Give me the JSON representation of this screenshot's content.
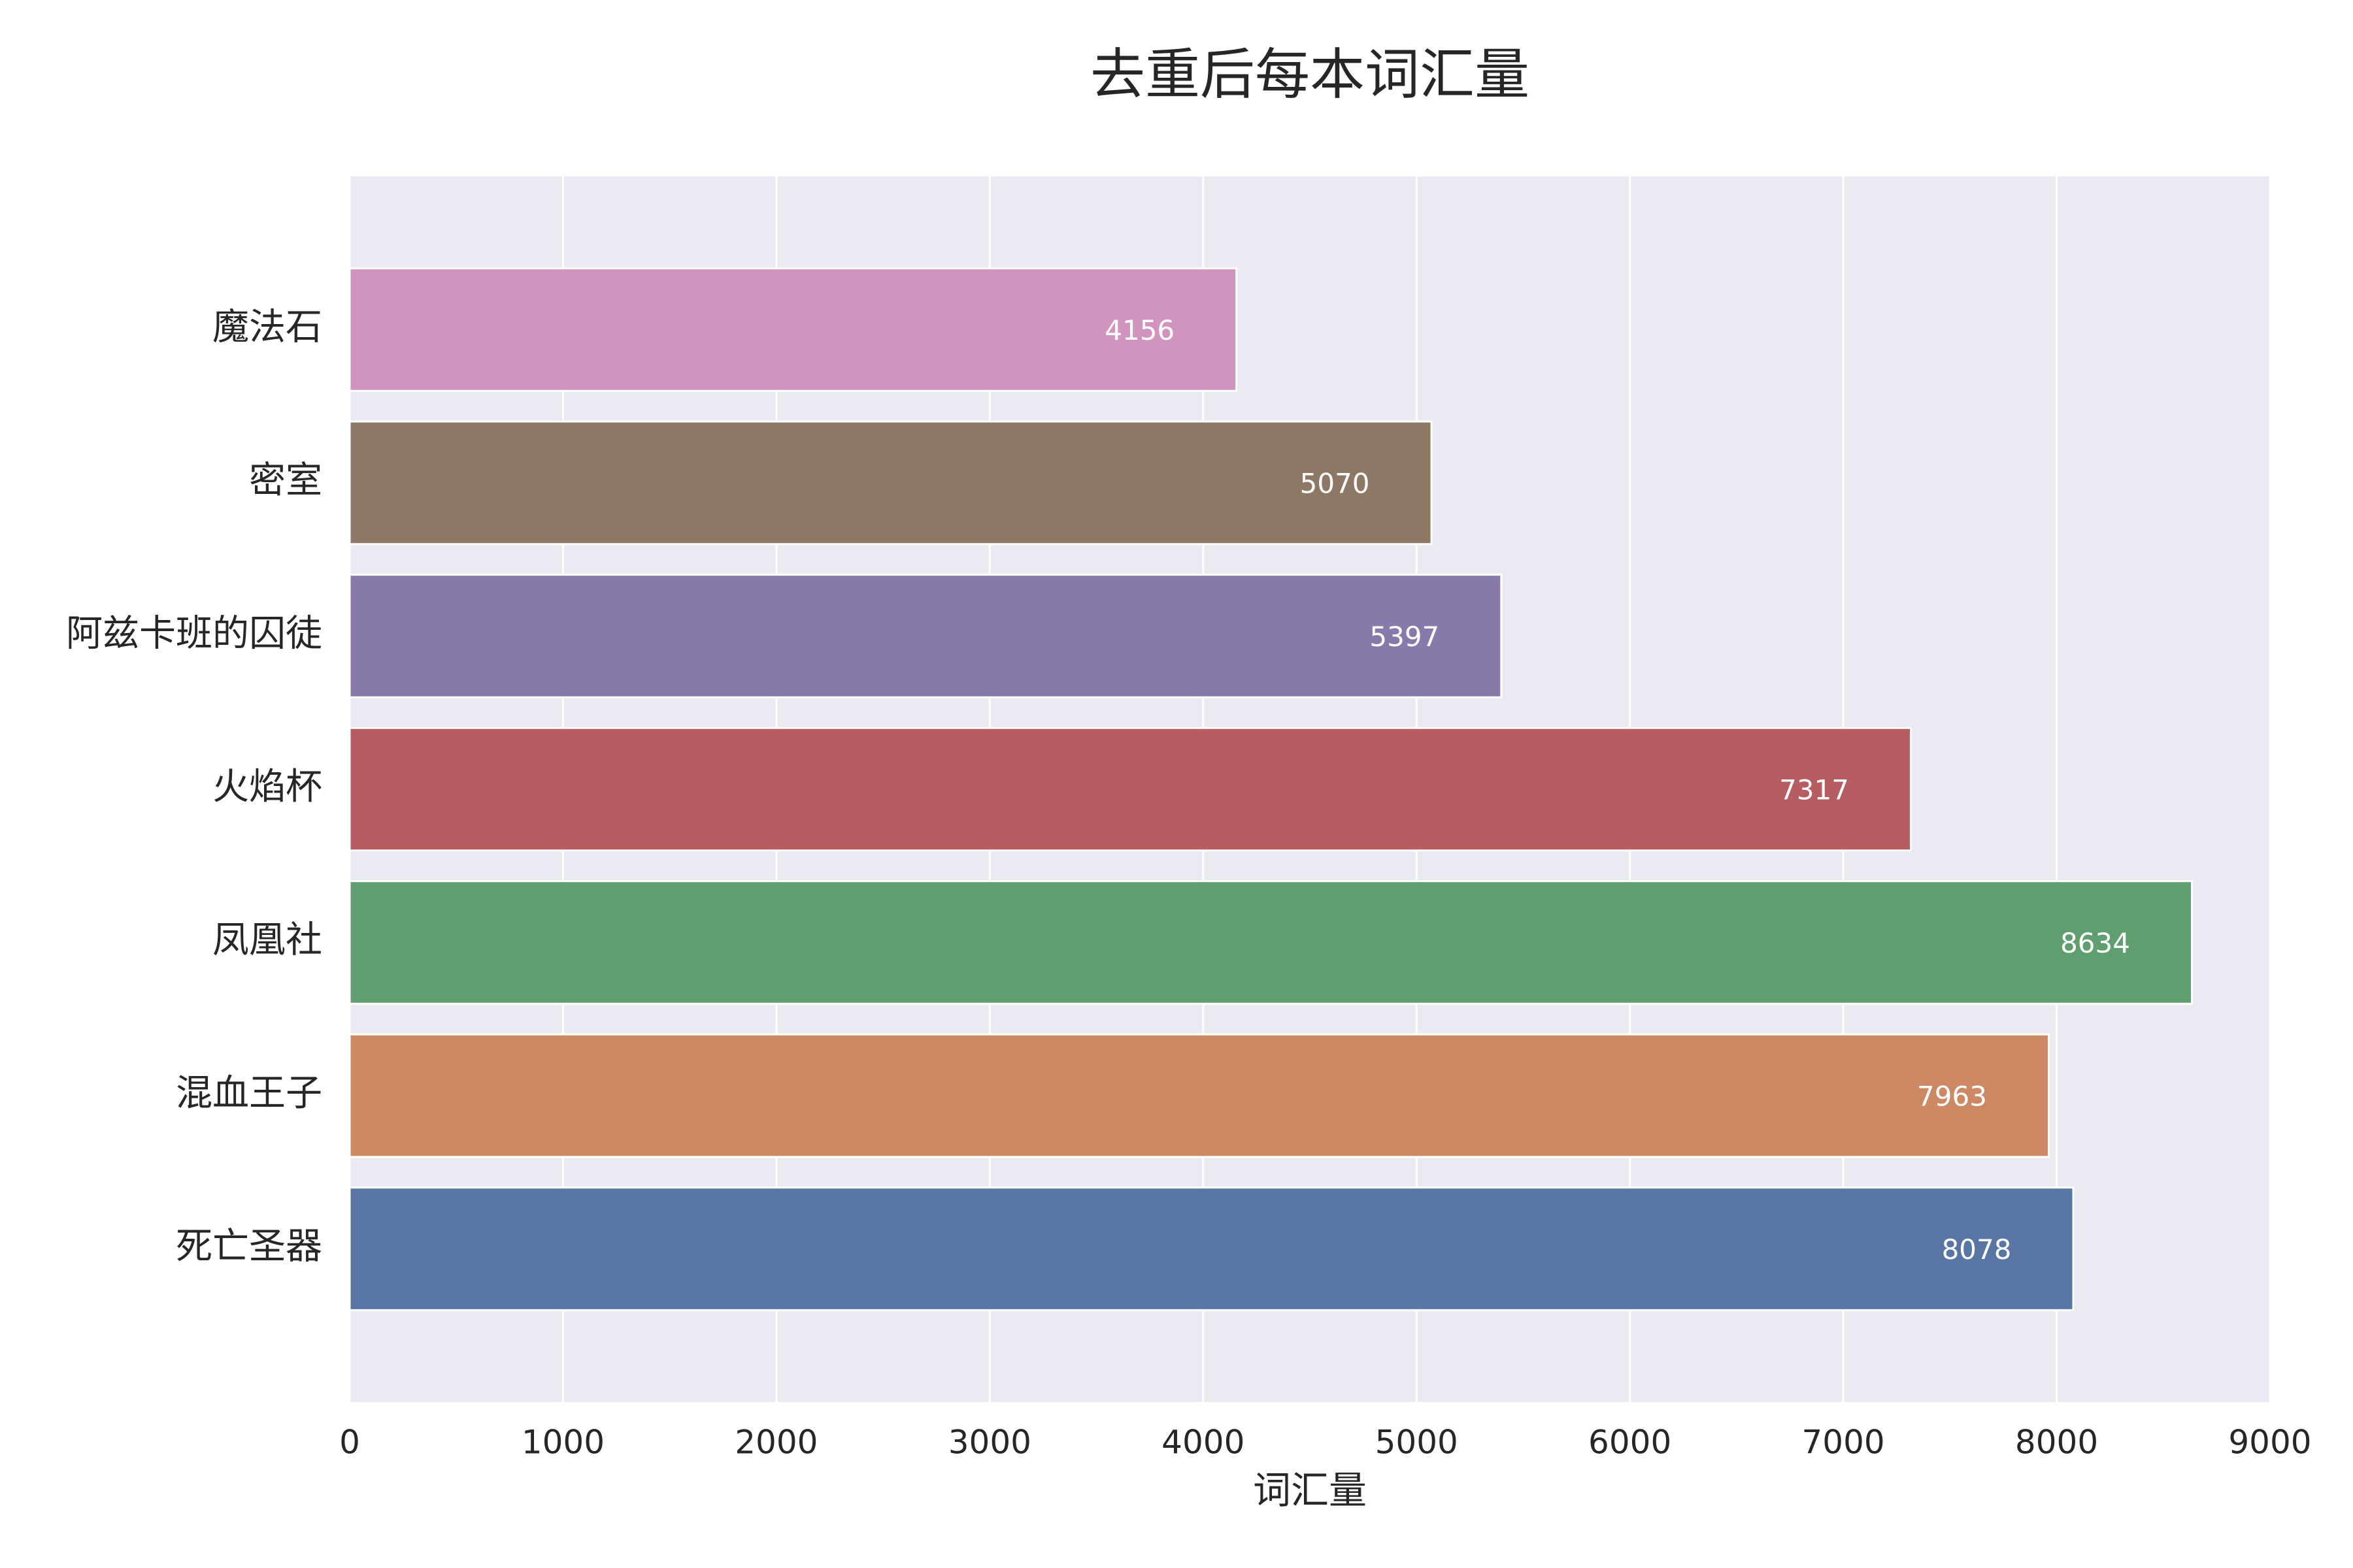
{
  "chart_data": {
    "type": "barh",
    "title": "去重后每本词汇量",
    "x_label": "词汇量",
    "categories": [
      "魔法石",
      "密室",
      "阿兹卡班的囚徒",
      "火焰杯",
      "凤凰社",
      "混血王子",
      "死亡圣器"
    ],
    "values": [
      4156,
      5070,
      5397,
      7317,
      8634,
      7963,
      8078
    ],
    "colors": [
      "#d094bf",
      "#8c7864",
      "#8779aa",
      "#b55d60",
      "#5f9e6e",
      "#cc8963",
      "#5975a4"
    ],
    "xlim": [
      0,
      9000
    ],
    "xticks": [
      0,
      1000,
      2000,
      3000,
      4000,
      5000,
      6000,
      7000,
      8000,
      9000
    ],
    "grid": true,
    "show_value_labels": true
  }
}
